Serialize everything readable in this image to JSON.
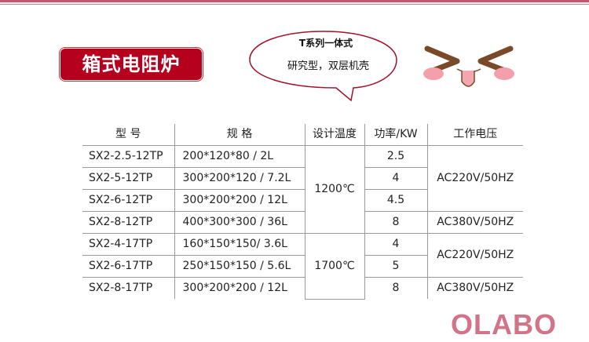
{
  "title": "箱式电阻炉",
  "bubble": {
    "line1": "T系列一体式",
    "line2": "研究型，双层机壳"
  },
  "colors": {
    "accent": "#b5001e",
    "logo": "#d47388"
  },
  "table": {
    "headers": [
      "型  号",
      "规  格",
      "设计温度",
      "功率/KW",
      "工作电压"
    ],
    "rows": [
      {
        "model": "SX2-2.5-12TP",
        "spec": "200*120*80 / 2L",
        "power": "2.5"
      },
      {
        "model": "SX2-5-12TP",
        "spec": "300*200*120 / 7.2L",
        "power": "4"
      },
      {
        "model": "SX2-6-12TP",
        "spec": "300*200*200 / 12L",
        "power": "4.5"
      },
      {
        "model": "SX2-8-12TP",
        "spec": "400*300*300 / 36L",
        "power": "8"
      },
      {
        "model": "SX2-4-17TP",
        "spec": "160*150*150/ 3.6L",
        "power": "4"
      },
      {
        "model": "SX2-6-17TP",
        "spec": "250*150*150 / 5.6L",
        "power": "5"
      },
      {
        "model": "SX2-8-17TP",
        "spec": "300*200*200 / 12L",
        "power": "8"
      }
    ],
    "temps": [
      "1200℃",
      "1700℃"
    ],
    "voltages": [
      "AC220V/50HZ",
      "AC380V/50HZ",
      "AC220V/50HZ",
      "AC380V/50HZ"
    ]
  },
  "logo": "OLABO"
}
